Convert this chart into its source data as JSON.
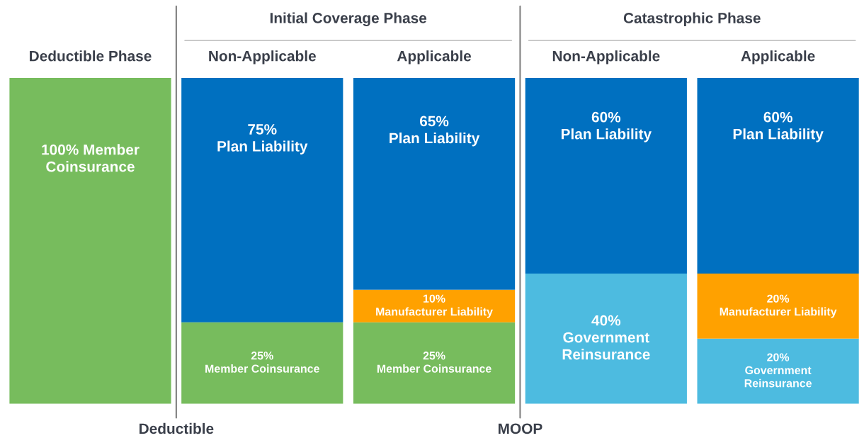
{
  "chart_data": {
    "type": "bar",
    "stacked": true,
    "categories": [
      "Deductible Phase",
      "Non-Applicable",
      "Applicable",
      "Non-Applicable",
      "Applicable"
    ],
    "ylim": [
      0,
      100
    ],
    "tick_labels": "x",
    "grid": false,
    "legend": false,
    "series": [
      {
        "color": "#77bc5d",
        "values": [
          100,
          25,
          25,
          null,
          null
        ],
        "value_labels": [
          "100% Member\nCoinsurance",
          "25%\nMember Coinsurance",
          "25%\nMember Coinsurance",
          null,
          null
        ]
      },
      {
        "color": "#4dbbe0",
        "values": [
          null,
          null,
          null,
          40,
          20
        ],
        "value_labels": [
          null,
          null,
          null,
          "40%\nGovernment\nReinsurance",
          "20%\nGovernment\nReinsurance"
        ]
      },
      {
        "color": "#ffa100",
        "values": [
          null,
          null,
          10,
          null,
          20
        ],
        "value_labels": [
          null,
          null,
          "10%\nManufacturer Liability",
          null,
          "20%\nManufacturer Liability"
        ]
      },
      {
        "color": "#0070c0",
        "values": [
          null,
          75,
          65,
          60,
          60
        ],
        "value_labels": [
          null,
          "75%\nPlan Liability",
          "65%\nPlan Liability",
          "60%\nPlan Liability",
          "60%\nPlan Liability"
        ]
      }
    ],
    "annotations": [
      "Initial Coverage Phase",
      "Catastrophic Phase",
      "Deductible",
      "MOOP"
    ]
  }
}
